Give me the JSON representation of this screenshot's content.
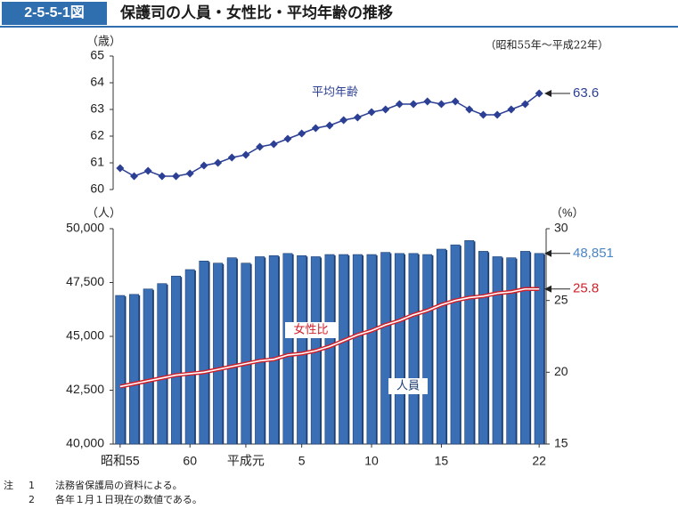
{
  "header": {
    "figure_no": "2-5-5-1図",
    "title": "保護司の人員・女性比・平均年齢の推移"
  },
  "period": "（昭和55年～平成22年）",
  "colors": {
    "bar": "#3a6fb5",
    "bar_dark": "#1e3f73",
    "age_line": "#2b3f94",
    "ratio_line": "#d0202a",
    "count_label": "#4a86c5"
  },
  "chart_data": [
    {
      "type": "line",
      "name": "age",
      "title": "",
      "ylabel": "（歳）",
      "ylim": [
        60,
        65
      ],
      "yticks": [
        "60",
        "61",
        "62",
        "63",
        "64",
        "65"
      ],
      "series": [
        {
          "name": "平均年齢",
          "values": [
            60.8,
            60.5,
            60.7,
            60.5,
            60.5,
            60.6,
            60.9,
            61.0,
            61.2,
            61.3,
            61.6,
            61.7,
            61.9,
            62.1,
            62.3,
            62.4,
            62.6,
            62.7,
            62.9,
            63.0,
            63.2,
            63.2,
            63.3,
            63.2,
            63.3,
            63.0,
            62.8,
            62.8,
            63.0,
            63.2,
            63.6
          ]
        }
      ],
      "end_label": "63.6"
    },
    {
      "type": "bar",
      "name": "count_and_ratio",
      "title": "",
      "xticks": [
        "昭和55",
        "60",
        "平成元",
        "5",
        "10",
        "15",
        "22"
      ],
      "ylabel": "（人）",
      "ylim": [
        40000,
        50000
      ],
      "yticks": [
        "40,000",
        "42,500",
        "45,000",
        "47,500",
        "50,000"
      ],
      "y2label": "（%）",
      "y2lim": [
        15,
        30
      ],
      "y2ticks": [
        "15",
        "20",
        "25",
        "30"
      ],
      "series": [
        {
          "name": "人員",
          "values": [
            46900,
            46950,
            47200,
            47450,
            47800,
            48100,
            48500,
            48400,
            48650,
            48400,
            48700,
            48750,
            48850,
            48750,
            48700,
            48800,
            48800,
            48800,
            48800,
            48900,
            48850,
            48850,
            48800,
            49050,
            49250,
            49450,
            48950,
            48700,
            48650,
            48950,
            48851
          ]
        },
        {
          "name": "女性比",
          "values": [
            19.0,
            19.2,
            19.4,
            19.6,
            19.8,
            19.9,
            20.0,
            20.2,
            20.4,
            20.6,
            20.8,
            20.9,
            21.2,
            21.3,
            21.5,
            21.8,
            22.2,
            22.6,
            22.9,
            23.3,
            23.6,
            24.0,
            24.3,
            24.7,
            25.0,
            25.2,
            25.3,
            25.5,
            25.6,
            25.8,
            25.8
          ]
        }
      ],
      "end_label_count": "48,851",
      "end_label_ratio": "25.8"
    }
  ],
  "notes": [
    {
      "label": "注",
      "num": "1",
      "text": "法務省保護局の資料による。"
    },
    {
      "label": "",
      "num": "2",
      "text": "各年１月１日現在の数値である。"
    }
  ]
}
